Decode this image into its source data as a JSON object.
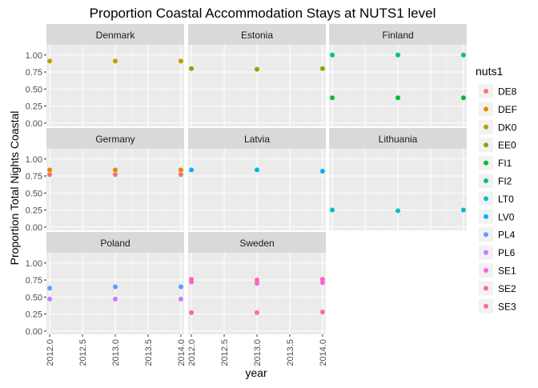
{
  "chart_data": {
    "type": "scatter",
    "title": "Proportion Coastal Accommodation Stays at NUTS1 level",
    "xlabel": "year",
    "ylabel": "Proportion Total Nights Coastal",
    "xlim": [
      1999.5,
      2014.05
    ],
    "ylim": [
      -0.05,
      1.15
    ],
    "x_ticks": [
      2012.0,
      2012.5,
      2013.0,
      2013.5,
      2014.0
    ],
    "x_tick_labels": [
      "2012.0",
      "2012.5",
      "2013.0",
      "2013.5",
      "2014.0"
    ],
    "y_ticks": [
      0.0,
      0.25,
      0.5,
      0.75,
      1.0
    ],
    "y_tick_labels": [
      "0.00",
      "0.25",
      "0.50",
      "0.75",
      "1.00"
    ],
    "grid": true,
    "facet_layout": "3x3",
    "legend": {
      "title": "nuts1",
      "placement": "right",
      "entries": [
        {
          "name": "DE8",
          "color": "#F8766D"
        },
        {
          "name": "DEF",
          "color": "#DE8C00"
        },
        {
          "name": "DK0",
          "color": "#B79F00"
        },
        {
          "name": "EE0",
          "color": "#7CAE00"
        },
        {
          "name": "FI1",
          "color": "#00BA38"
        },
        {
          "name": "FI2",
          "color": "#00C08B"
        },
        {
          "name": "LT0",
          "color": "#00BFC4"
        },
        {
          "name": "LV0",
          "color": "#00B4F0"
        },
        {
          "name": "PL4",
          "color": "#619CFF"
        },
        {
          "name": "PL6",
          "color": "#C77CFF"
        },
        {
          "name": "SE1",
          "color": "#F564E3"
        },
        {
          "name": "SE2",
          "color": "#FF64B0"
        },
        {
          "name": "SE3",
          "color": "#FF6C91"
        }
      ]
    },
    "facets": [
      {
        "name": "Denmark",
        "series": [
          {
            "name": "DK0",
            "x": [
              2012,
              2013,
              2014
            ],
            "y": [
              0.91,
              0.91,
              0.91
            ]
          }
        ]
      },
      {
        "name": "Estonia",
        "series": [
          {
            "name": "EE0",
            "x": [
              2012,
              2013,
              2014
            ],
            "y": [
              0.8,
              0.79,
              0.8
            ]
          }
        ]
      },
      {
        "name": "Finland",
        "series": [
          {
            "name": "FI1",
            "x": [
              2012,
              2013,
              2014
            ],
            "y": [
              0.37,
              0.37,
              0.37
            ]
          },
          {
            "name": "FI2",
            "x": [
              2012,
              2013,
              2014
            ],
            "y": [
              1.0,
              1.0,
              1.0
            ]
          }
        ]
      },
      {
        "name": "Germany",
        "series": [
          {
            "name": "DE8",
            "x": [
              2012,
              2013,
              2014
            ],
            "y": [
              0.77,
              0.77,
              0.77
            ]
          },
          {
            "name": "DEF",
            "x": [
              2012,
              2013,
              2014
            ],
            "y": [
              0.84,
              0.84,
              0.84
            ]
          }
        ]
      },
      {
        "name": "Latvia",
        "series": [
          {
            "name": "LV0",
            "x": [
              2012,
              2013,
              2014
            ],
            "y": [
              0.84,
              0.84,
              0.82
            ]
          }
        ]
      },
      {
        "name": "Lithuania",
        "series": [
          {
            "name": "LT0",
            "x": [
              2012,
              2013,
              2014
            ],
            "y": [
              0.25,
              0.24,
              0.25
            ]
          }
        ]
      },
      {
        "name": "Poland",
        "series": [
          {
            "name": "PL4",
            "x": [
              2012,
              2013,
              2014
            ],
            "y": [
              0.63,
              0.65,
              0.65
            ]
          },
          {
            "name": "PL6",
            "x": [
              2012,
              2013,
              2014
            ],
            "y": [
              0.47,
              0.47,
              0.47
            ]
          }
        ]
      },
      {
        "name": "Sweden",
        "series": [
          {
            "name": "SE1",
            "x": [
              2012,
              2013,
              2014
            ],
            "y": [
              0.72,
              0.7,
              0.71
            ]
          },
          {
            "name": "SE2",
            "x": [
              2012,
              2013,
              2014
            ],
            "y": [
              0.76,
              0.75,
              0.76
            ]
          },
          {
            "name": "SE3",
            "x": [
              2012,
              2013,
              2014
            ],
            "y": [
              0.27,
              0.27,
              0.28
            ]
          }
        ]
      }
    ]
  }
}
